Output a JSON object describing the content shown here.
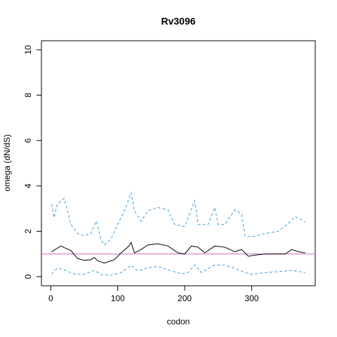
{
  "chart_data": {
    "type": "line",
    "title": "Rv3096",
    "x_label": "codon",
    "y_label": "omega (dN/dS)",
    "xlim": [
      -14,
      395
    ],
    "ylim": [
      -0.4,
      10.4
    ],
    "xticks": [
      0,
      100,
      200,
      300
    ],
    "yticks": [
      0,
      2,
      4,
      6,
      8,
      10
    ],
    "hline": {
      "value": 1,
      "color": "#cc66cc"
    },
    "series": [
      {
        "color": "#000000",
        "dash": false,
        "x": [
          1,
          15,
          30,
          40,
          50,
          60,
          65,
          70,
          80,
          95,
          105,
          115,
          120,
          125,
          135,
          145,
          160,
          175,
          190,
          200,
          210,
          220,
          230,
          245,
          260,
          275,
          285,
          295,
          305,
          320,
          335,
          350,
          360,
          370,
          380
        ],
        "values": [
          1.1,
          1.35,
          1.15,
          0.8,
          0.72,
          0.75,
          0.85,
          0.7,
          0.6,
          0.75,
          1.05,
          1.3,
          1.5,
          1.05,
          1.2,
          1.4,
          1.45,
          1.35,
          1.05,
          1.0,
          1.35,
          1.3,
          1.05,
          1.35,
          1.3,
          1.1,
          1.2,
          0.9,
          0.95,
          1.0,
          1.0,
          1.0,
          1.2,
          1.1,
          1.05
        ]
      },
      {
        "color": "#3aa0d8",
        "dash": true,
        "x": [
          1,
          5,
          10,
          20,
          25,
          30,
          40,
          50,
          60,
          68,
          75,
          80,
          90,
          100,
          110,
          120,
          125,
          135,
          145,
          160,
          175,
          185,
          200,
          215,
          220,
          235,
          245,
          250,
          260,
          275,
          285,
          290,
          300,
          320,
          340,
          355,
          365,
          372,
          380
        ],
        "values": [
          3.2,
          2.6,
          3.2,
          3.45,
          2.9,
          2.3,
          1.9,
          1.8,
          1.9,
          2.45,
          1.65,
          1.4,
          1.65,
          2.3,
          2.9,
          3.7,
          2.9,
          2.45,
          2.9,
          3.05,
          2.95,
          2.3,
          2.2,
          3.35,
          2.3,
          2.3,
          3.05,
          2.3,
          2.3,
          2.95,
          2.75,
          1.8,
          1.75,
          1.9,
          2.0,
          2.35,
          2.65,
          2.55,
          2.4
        ]
      },
      {
        "color": "#3aa0d8",
        "dash": true,
        "x": [
          1,
          10,
          20,
          35,
          50,
          65,
          75,
          90,
          105,
          120,
          130,
          145,
          160,
          175,
          195,
          205,
          215,
          225,
          245,
          260,
          275,
          290,
          300,
          320,
          340,
          360,
          380
        ],
        "values": [
          0.12,
          0.37,
          0.3,
          0.12,
          0.1,
          0.28,
          0.1,
          0.06,
          0.18,
          0.5,
          0.25,
          0.4,
          0.45,
          0.3,
          0.12,
          0.18,
          0.52,
          0.18,
          0.52,
          0.5,
          0.37,
          0.18,
          0.1,
          0.18,
          0.22,
          0.28,
          0.18
        ]
      }
    ]
  }
}
